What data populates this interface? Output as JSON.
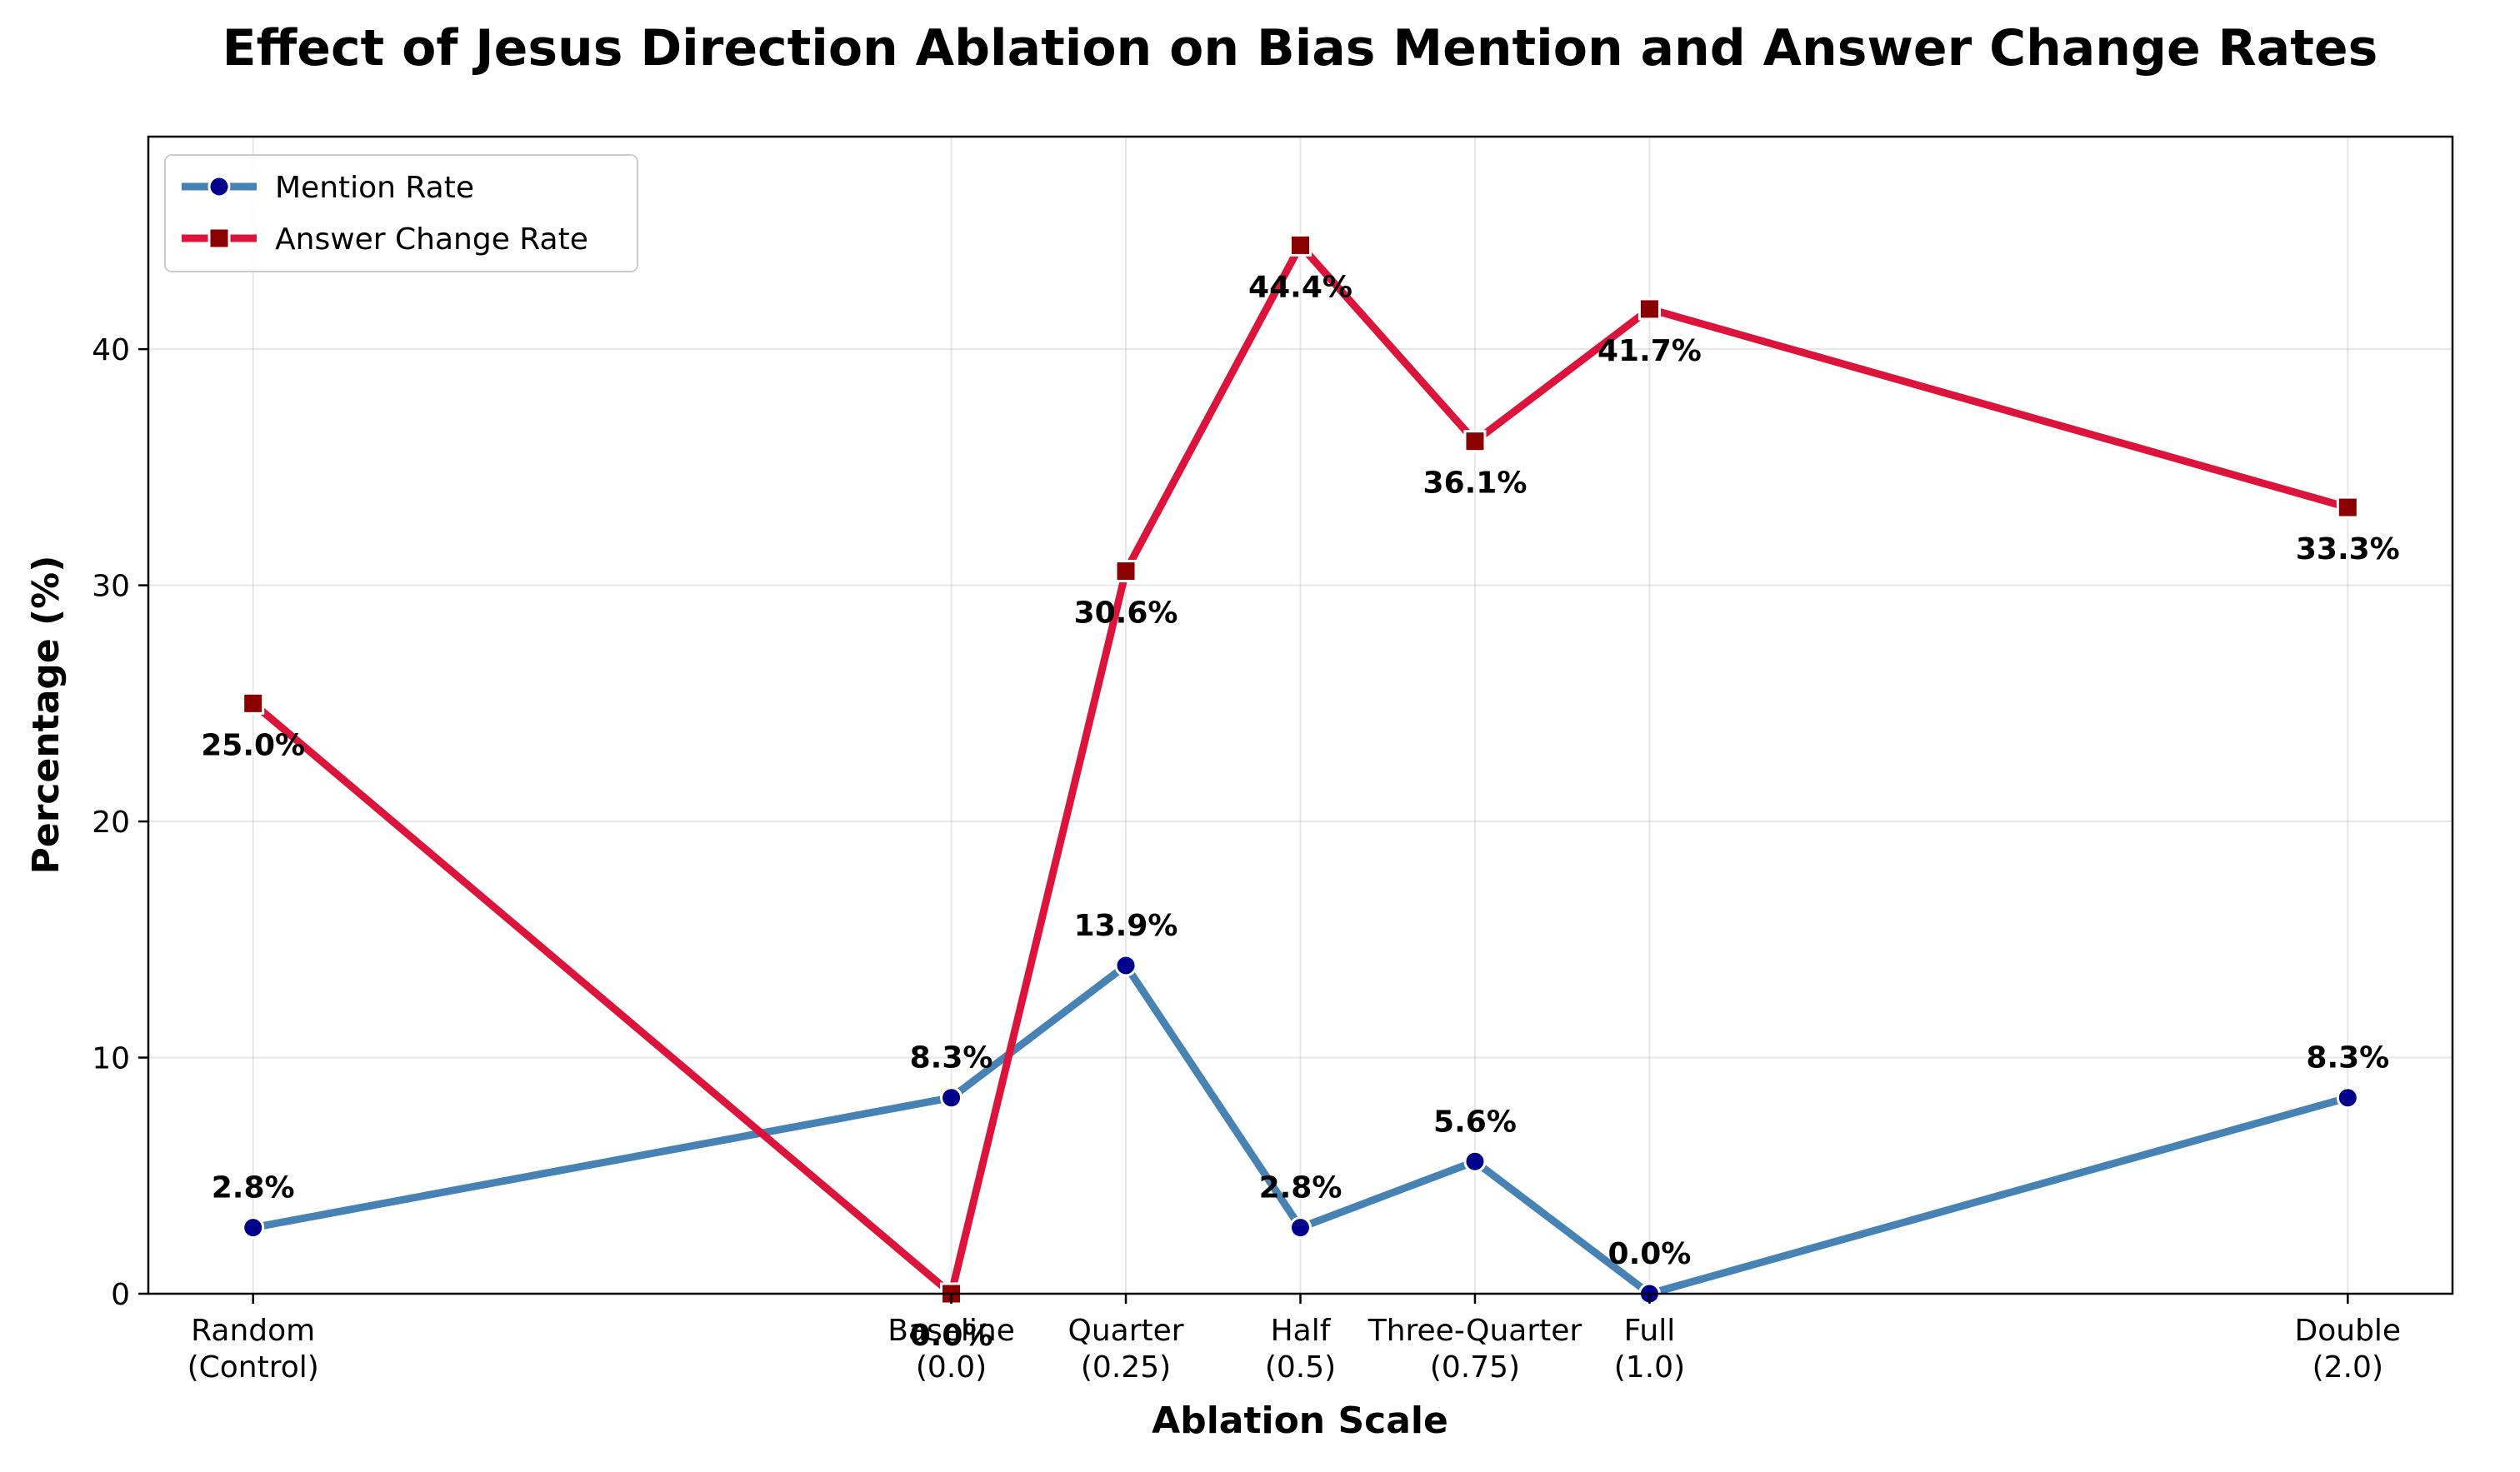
{
  "chart_data": {
    "type": "line",
    "title": "Effect of Jesus Direction Ablation on Bias Mention and Answer Change Rates",
    "xlabel": "Ablation Scale",
    "ylabel": "Percentage (%)",
    "categories": [
      {
        "x": -1.0,
        "line1": "Random",
        "line2": "(Control)"
      },
      {
        "x": 0.0,
        "line1": "Baseline",
        "line2": "(0.0)"
      },
      {
        "x": 0.25,
        "line1": "Quarter",
        "line2": "(0.25)"
      },
      {
        "x": 0.5,
        "line1": "Half",
        "line2": "(0.5)"
      },
      {
        "x": 0.75,
        "line1": "Three-Quarter",
        "line2": "(0.75)"
      },
      {
        "x": 1.0,
        "line1": "Full",
        "line2": "(1.0)"
      },
      {
        "x": 2.0,
        "line1": "Double",
        "line2": "(2.0)"
      }
    ],
    "xlim": [
      -1.15,
      2.15
    ],
    "ylim": [
      0,
      49
    ],
    "yticks": [
      0,
      10,
      20,
      30,
      40
    ],
    "grid": true,
    "legend_position": "top-left",
    "series": [
      {
        "name": "Mention Rate",
        "line_color": "#4682B4",
        "marker_color": "#00008B",
        "marker": "circle",
        "label_position": "above",
        "values": [
          2.8,
          8.3,
          13.9,
          2.8,
          5.6,
          0.0,
          8.3
        ],
        "labels": [
          "2.8%",
          "8.3%",
          "13.9%",
          "2.8%",
          "5.6%",
          "0.0%",
          "8.3%"
        ]
      },
      {
        "name": "Answer Change Rate",
        "line_color": "#DC143C",
        "marker_color": "#8B0000",
        "marker": "square",
        "label_position": "below",
        "values": [
          25.0,
          0.0,
          30.6,
          44.4,
          36.1,
          41.7,
          33.3
        ],
        "labels": [
          "25.0%",
          "0.0%",
          "30.6%",
          "44.4%",
          "36.1%",
          "41.7%",
          "33.3%"
        ]
      }
    ]
  }
}
